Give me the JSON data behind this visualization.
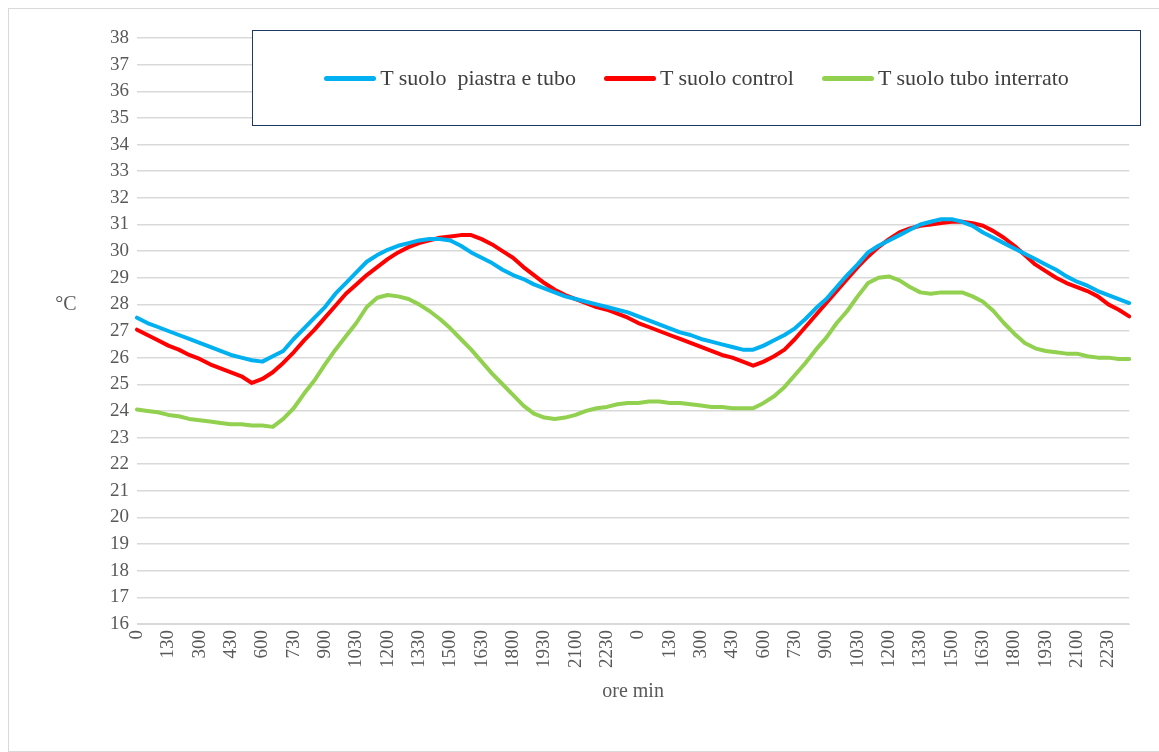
{
  "chart_data": {
    "type": "line",
    "xlabel": "ore min",
    "ylabel": "°C",
    "categories": [
      "0",
      null,
      null,
      "130",
      null,
      null,
      "300",
      null,
      null,
      "430",
      null,
      null,
      "600",
      null,
      null,
      "730",
      null,
      null,
      "900",
      null,
      null,
      "1030",
      null,
      null,
      "1200",
      null,
      null,
      "1330",
      null,
      null,
      "1500",
      null,
      null,
      "1630",
      null,
      null,
      "1800",
      null,
      null,
      "1930",
      null,
      null,
      "2100",
      null,
      null,
      "2230",
      null,
      null,
      "0",
      null,
      null,
      "130",
      null,
      null,
      "300",
      null,
      null,
      "430",
      null,
      null,
      "600",
      null,
      null,
      "730",
      null,
      null,
      "900",
      null,
      null,
      "1030",
      null,
      null,
      "1200",
      null,
      null,
      "1330",
      null,
      null,
      "1500",
      null,
      null,
      "1630",
      null,
      null,
      "1800",
      null,
      null,
      "1930",
      null,
      null,
      "2100",
      null,
      null,
      "2230",
      null,
      null
    ],
    "series": [
      {
        "name": "T suolo  piastra e tubo",
        "color": "#00b0f0",
        "values": [
          27.5,
          27.3,
          27.15,
          27.0,
          26.85,
          26.7,
          26.55,
          26.4,
          26.25,
          26.1,
          26.0,
          25.9,
          25.85,
          26.05,
          26.25,
          26.7,
          27.1,
          27.5,
          27.9,
          28.4,
          28.8,
          29.2,
          29.6,
          29.85,
          30.05,
          30.2,
          30.3,
          30.4,
          30.45,
          30.45,
          30.4,
          30.2,
          29.95,
          29.75,
          29.55,
          29.3,
          29.1,
          28.95,
          28.75,
          28.6,
          28.45,
          28.3,
          28.2,
          28.1,
          28.0,
          27.9,
          27.8,
          27.7,
          27.55,
          27.4,
          27.25,
          27.1,
          26.95,
          26.85,
          26.7,
          26.6,
          26.5,
          26.4,
          26.3,
          26.3,
          26.45,
          26.65,
          26.85,
          27.1,
          27.45,
          27.85,
          28.2,
          28.65,
          29.1,
          29.5,
          29.95,
          30.2,
          30.4,
          30.6,
          30.8,
          31.0,
          31.1,
          31.2,
          31.2,
          31.1,
          30.95,
          30.7,
          30.5,
          30.3,
          30.1,
          29.9,
          29.7,
          29.5,
          29.3,
          29.05,
          28.85,
          28.7,
          28.5,
          28.35,
          28.2,
          28.05
        ]
      },
      {
        "name": "T suolo control",
        "color": "#ff0000",
        "values": [
          27.05,
          26.85,
          26.65,
          26.45,
          26.3,
          26.1,
          25.95,
          25.75,
          25.6,
          25.45,
          25.3,
          25.05,
          25.2,
          25.45,
          25.8,
          26.2,
          26.65,
          27.05,
          27.5,
          27.95,
          28.4,
          28.75,
          29.1,
          29.4,
          29.7,
          29.95,
          30.15,
          30.3,
          30.4,
          30.5,
          30.55,
          30.6,
          30.6,
          30.45,
          30.25,
          30.0,
          29.75,
          29.4,
          29.1,
          28.8,
          28.55,
          28.35,
          28.2,
          28.05,
          27.9,
          27.8,
          27.65,
          27.5,
          27.3,
          27.15,
          27.0,
          26.85,
          26.7,
          26.55,
          26.4,
          26.25,
          26.1,
          26.0,
          25.85,
          25.7,
          25.85,
          26.05,
          26.3,
          26.7,
          27.15,
          27.6,
          28.05,
          28.5,
          28.95,
          29.4,
          29.8,
          30.15,
          30.45,
          30.7,
          30.85,
          30.95,
          31.0,
          31.05,
          31.1,
          31.1,
          31.05,
          30.95,
          30.75,
          30.5,
          30.2,
          29.85,
          29.5,
          29.25,
          29.0,
          28.8,
          28.65,
          28.5,
          28.3,
          28.0,
          27.8,
          27.55
        ]
      },
      {
        "name": "T suolo tubo interrato",
        "color": "#92d050",
        "values": [
          24.05,
          24.0,
          23.95,
          23.85,
          23.8,
          23.7,
          23.65,
          23.6,
          23.55,
          23.5,
          23.5,
          23.45,
          23.45,
          23.4,
          23.7,
          24.1,
          24.65,
          25.15,
          25.75,
          26.3,
          26.8,
          27.3,
          27.9,
          28.25,
          28.35,
          28.3,
          28.2,
          28.0,
          27.75,
          27.45,
          27.1,
          26.7,
          26.3,
          25.85,
          25.4,
          25.0,
          24.6,
          24.2,
          23.9,
          23.75,
          23.7,
          23.75,
          23.85,
          24.0,
          24.1,
          24.15,
          24.25,
          24.3,
          24.3,
          24.35,
          24.35,
          24.3,
          24.3,
          24.25,
          24.2,
          24.15,
          24.15,
          24.1,
          24.1,
          24.1,
          24.3,
          24.55,
          24.9,
          25.35,
          25.8,
          26.3,
          26.75,
          27.3,
          27.75,
          28.3,
          28.8,
          29.0,
          29.05,
          28.9,
          28.65,
          28.45,
          28.4,
          28.45,
          28.45,
          28.45,
          28.3,
          28.1,
          27.75,
          27.3,
          26.9,
          26.55,
          26.35,
          26.25,
          26.2,
          26.15,
          26.15,
          26.05,
          26.0,
          26.0,
          25.95,
          25.95
        ]
      }
    ],
    "ylim": [
      16,
      38
    ],
    "yticks": [
      16,
      17,
      18,
      19,
      20,
      21,
      22,
      23,
      24,
      25,
      26,
      27,
      28,
      29,
      30,
      31,
      32,
      33,
      34,
      35,
      36,
      37,
      38
    ],
    "grid": "y",
    "legend": "top right",
    "marker": "none",
    "line_style": "solid"
  }
}
